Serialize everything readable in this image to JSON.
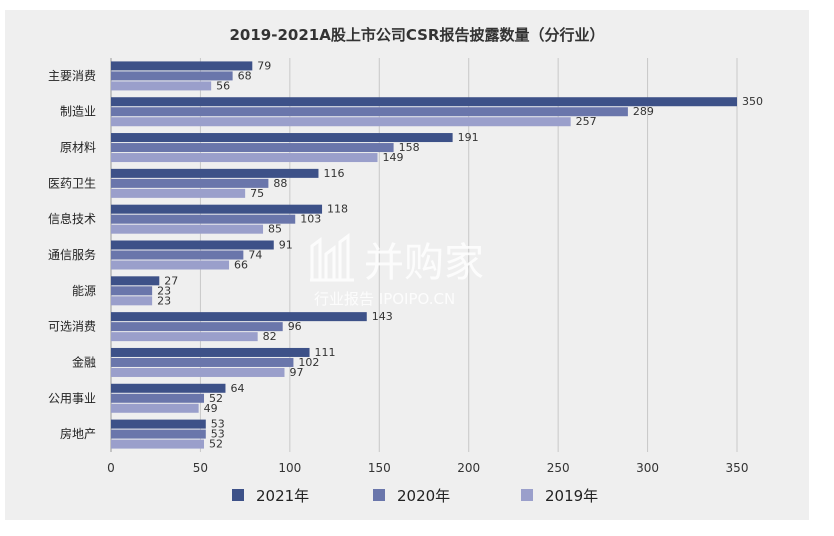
{
  "chart_data": {
    "type": "bar",
    "orientation": "horizontal",
    "title": "2019-2021A股上市公司CSR报告披露数量（分行业）",
    "categories": [
      "主要消费",
      "制造业",
      "原材料",
      "医药卫生",
      "信息技术",
      "通信服务",
      "能源",
      "可选消费",
      "金融",
      "公用事业",
      "房地产"
    ],
    "series": [
      {
        "name": "2021年",
        "color": "#3d5188",
        "values": [
          79,
          350,
          191,
          116,
          118,
          91,
          27,
          143,
          111,
          64,
          53
        ]
      },
      {
        "name": "2020年",
        "color": "#6a76ab",
        "values": [
          68,
          289,
          158,
          88,
          103,
          74,
          23,
          96,
          102,
          52,
          53
        ]
      },
      {
        "name": "2019年",
        "color": "#9a9fcb",
        "values": [
          56,
          257,
          149,
          75,
          85,
          66,
          23,
          82,
          97,
          49,
          52
        ]
      }
    ],
    "xlim": [
      0,
      350
    ],
    "xticks": [
      "0",
      "50",
      "100",
      "150",
      "200",
      "250",
      "300",
      "350"
    ],
    "grid": true,
    "legend_position": "bottom"
  },
  "watermark": {
    "brand": "并购家",
    "tagline": "行业报告 IPOIPO.CN"
  }
}
